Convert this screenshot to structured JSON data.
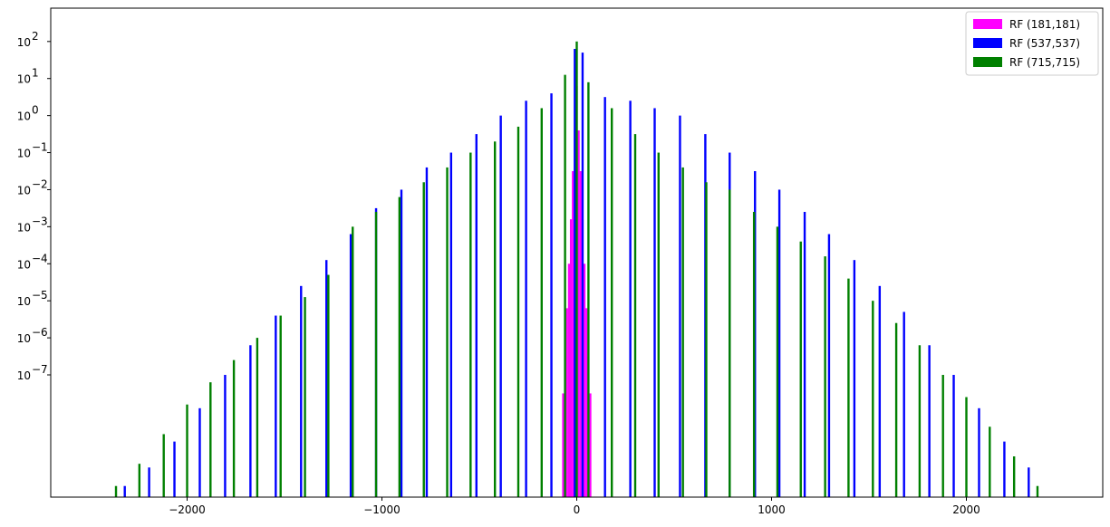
{
  "chart_data": {
    "type": "bar",
    "title": "",
    "xlabel": "",
    "ylabel": "",
    "xlim": [
      -2700,
      2700
    ],
    "ylim_log10": [
      -10.3,
      2.9
    ],
    "yscale": "log",
    "grid": false,
    "legend_position": "top-right",
    "x_ticks": [
      -2000,
      -1000,
      0,
      1000,
      2000
    ],
    "x_tick_labels": [
      "−2000",
      "−1000",
      "0",
      "1000",
      "2000"
    ],
    "y_ticks_exp": [
      -7,
      -6,
      -5,
      -4,
      -3,
      -2,
      -1,
      0,
      1,
      2
    ],
    "y_tick_labels": [
      "10",
      "10",
      "10",
      "10",
      "10",
      "10",
      "10",
      "10",
      "10",
      "10"
    ],
    "y_tick_exponents": [
      "−7",
      "−6",
      "−5",
      "−4",
      "−3",
      "−2",
      "−1",
      "0",
      "1",
      "2"
    ],
    "series": [
      {
        "name": "RF (181,181)",
        "color": "#ff00ff",
        "x": [
          -70,
          -60,
          -50,
          -40,
          -30,
          -20,
          -10,
          0,
          10,
          20,
          30,
          40,
          50,
          60,
          70
        ],
        "log10": [
          -7.5,
          -6.5,
          -5.2,
          -4.0,
          -2.8,
          -1.5,
          -0.4,
          0.8,
          -0.4,
          -1.5,
          -2.8,
          -4.0,
          -5.2,
          -6.5,
          -7.5
        ]
      },
      {
        "name": "RF (537,537)",
        "color": "#0000ff",
        "x": [
          -2320,
          -2195,
          -2065,
          -1935,
          -1805,
          -1675,
          -1545,
          -1415,
          -1285,
          -1160,
          -1030,
          -900,
          -770,
          -645,
          -515,
          -390,
          -260,
          -130,
          -10,
          30,
          145,
          275,
          400,
          530,
          660,
          785,
          915,
          1040,
          1170,
          1295,
          1425,
          1555,
          1680,
          1810,
          1935,
          2065,
          2195,
          2320
        ],
        "log10": [
          -10.0,
          -9.5,
          -8.8,
          -7.9,
          -7.0,
          -6.2,
          -5.4,
          -4.6,
          -3.9,
          -3.2,
          -2.5,
          -2.0,
          -1.4,
          -1.0,
          -0.5,
          0.0,
          0.4,
          0.6,
          1.8,
          1.7,
          0.5,
          0.4,
          0.2,
          0.0,
          -0.5,
          -1.0,
          -1.5,
          -2.0,
          -2.6,
          -3.2,
          -3.9,
          -4.6,
          -5.3,
          -6.2,
          -7.0,
          -7.9,
          -8.8,
          -9.5
        ]
      },
      {
        "name": "RF (715,715)",
        "color": "#008000",
        "x": [
          -2365,
          -2245,
          -2120,
          -2000,
          -1880,
          -1760,
          -1640,
          -1520,
          -1395,
          -1275,
          -1150,
          -1030,
          -910,
          -785,
          -665,
          -545,
          -420,
          -300,
          -180,
          -60,
          0,
          60,
          180,
          300,
          420,
          545,
          665,
          785,
          910,
          1030,
          1150,
          1275,
          1395,
          1520,
          1640,
          1760,
          1880,
          2000,
          2120,
          2245,
          2365
        ],
        "log10": [
          -10.0,
          -9.4,
          -8.6,
          -7.8,
          -7.2,
          -6.6,
          -6.0,
          -5.4,
          -4.9,
          -4.3,
          -3.0,
          -2.6,
          -2.2,
          -1.8,
          -1.4,
          -1.0,
          -0.7,
          -0.3,
          0.2,
          1.1,
          2.0,
          0.9,
          0.2,
          -0.5,
          -1.0,
          -1.4,
          -1.8,
          -2.0,
          -2.6,
          -3.0,
          -3.4,
          -3.8,
          -4.4,
          -5.0,
          -5.6,
          -6.2,
          -7.0,
          -7.6,
          -8.4,
          -9.2,
          -10.0
        ]
      }
    ]
  }
}
